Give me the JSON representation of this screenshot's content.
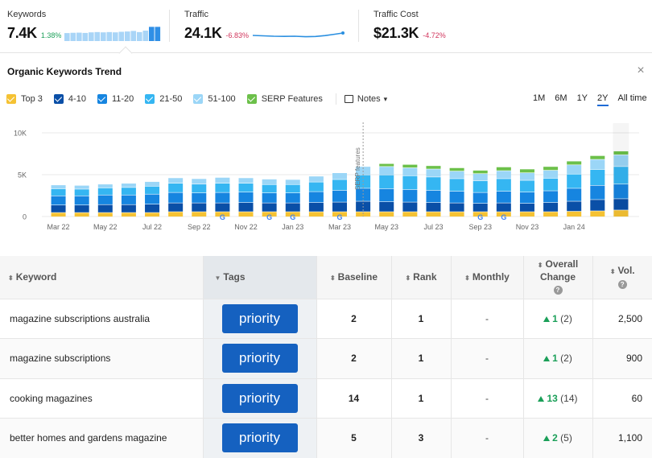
{
  "metrics": [
    {
      "label": "Keywords",
      "value": "7.4K",
      "change": "1.38%",
      "direction": "up"
    },
    {
      "label": "Traffic",
      "value": "24.1K",
      "change": "-6.83%",
      "direction": "down"
    },
    {
      "label": "Traffic Cost",
      "value": "$21.3K",
      "change": "-4.72%",
      "direction": "down"
    }
  ],
  "sparkline_keywords": [
    0.55,
    0.57,
    0.58,
    0.56,
    0.6,
    0.62,
    0.6,
    0.62,
    0.6,
    0.64,
    0.66,
    0.7,
    0.62,
    0.72,
    0.98,
    0.98
  ],
  "trend": {
    "title": "Organic Keywords Trend",
    "legend": [
      {
        "label": "Top 3",
        "color": "#f5c233",
        "checked": true
      },
      {
        "label": "4-10",
        "color": "#0a4fa7",
        "checked": true
      },
      {
        "label": "11-20",
        "color": "#1685e0",
        "checked": true
      },
      {
        "label": "21-50",
        "color": "#35b6f2",
        "checked": true
      },
      {
        "label": "51-100",
        "color": "#9bd6f7",
        "checked": true
      },
      {
        "label": "SERP Features",
        "color": "#6cc04a",
        "checked": true
      }
    ],
    "notes_label": "Notes",
    "periods": [
      "1M",
      "6M",
      "1Y",
      "2Y",
      "All time"
    ],
    "active_period": "2Y"
  },
  "chart_data": {
    "type": "bar",
    "stacked": true,
    "x_labels": [
      "Mar 22",
      "May 22",
      "Jul 22",
      "Sep 22",
      "Nov 22",
      "Jan 23",
      "Mar 23",
      "May 23",
      "Jul 23",
      "Sep 23",
      "Nov 23",
      "Jan 24"
    ],
    "y_ticks": [
      "0",
      "5K",
      "10K"
    ],
    "ylim": [
      0,
      10000
    ],
    "annotation": "SERP features",
    "series": [
      {
        "name": "Top 3",
        "color": "#f5c233",
        "values": [
          500,
          500,
          500,
          500,
          500,
          600,
          600,
          600,
          600,
          600,
          600,
          600,
          600,
          600,
          600,
          600,
          600,
          600,
          600,
          600,
          600,
          600,
          650,
          700,
          800
        ]
      },
      {
        "name": "4-10",
        "color": "#0a4fa7",
        "values": [
          900,
          900,
          950,
          950,
          1000,
          1050,
          1050,
          1050,
          1100,
          1050,
          1050,
          1100,
          1150,
          1250,
          1200,
          1150,
          1100,
          1050,
          1000,
          1050,
          1000,
          1100,
          1200,
          1350,
          1350
        ]
      },
      {
        "name": "11-20",
        "color": "#1685e0",
        "values": [
          1100,
          1100,
          1150,
          1150,
          1200,
          1250,
          1200,
          1250,
          1250,
          1200,
          1200,
          1300,
          1400,
          1550,
          1550,
          1500,
          1450,
          1400,
          1300,
          1400,
          1350,
          1400,
          1550,
          1700,
          1750
        ]
      },
      {
        "name": "21-50",
        "color": "#35b6f2",
        "values": [
          850,
          800,
          850,
          900,
          950,
          1100,
          1050,
          1100,
          1050,
          1000,
          1000,
          1150,
          1300,
          1600,
          1650,
          1650,
          1600,
          1500,
          1400,
          1500,
          1400,
          1500,
          1700,
          1900,
          2100
        ]
      },
      {
        "name": "51-100",
        "color": "#9bd6f7",
        "values": [
          450,
          450,
          450,
          500,
          550,
          650,
          650,
          700,
          650,
          650,
          600,
          700,
          800,
          1000,
          1000,
          950,
          950,
          900,
          850,
          950,
          900,
          950,
          1100,
          1200,
          1400
        ]
      },
      {
        "name": "SERP Features",
        "color": "#6cc04a",
        "values": [
          0,
          0,
          0,
          0,
          0,
          0,
          0,
          0,
          0,
          0,
          0,
          0,
          0,
          0,
          350,
          400,
          400,
          400,
          400,
          450,
          450,
          450,
          450,
          450,
          450
        ]
      }
    ],
    "google_markers": [
      7,
      9,
      10,
      12,
      18,
      19
    ],
    "grid": true
  },
  "table": {
    "headers": {
      "keyword": "Keyword",
      "tags": "Tags",
      "baseline": "Baseline",
      "rank": "Rank",
      "monthly": "Monthly",
      "overall_change_1": "Overall",
      "overall_change_2": "Change",
      "volume": "Vol."
    },
    "rows": [
      {
        "keyword": "magazine subscriptions australia",
        "tag": "priority",
        "baseline": "2",
        "rank": "1",
        "monthly": "-",
        "change": "1",
        "change_paren": "(2)",
        "volume": "2,500"
      },
      {
        "keyword": "magazine subscriptions",
        "tag": "priority",
        "baseline": "2",
        "rank": "1",
        "monthly": "-",
        "change": "1",
        "change_paren": "(2)",
        "volume": "900"
      },
      {
        "keyword": "cooking magazines",
        "tag": "priority",
        "baseline": "14",
        "rank": "1",
        "monthly": "-",
        "change": "13",
        "change_paren": "(14)",
        "volume": "60"
      },
      {
        "keyword": "better homes and gardens magazine",
        "tag": "priority",
        "baseline": "5",
        "rank": "3",
        "monthly": "-",
        "change": "2",
        "change_paren": "(5)",
        "volume": "1,100"
      }
    ]
  }
}
